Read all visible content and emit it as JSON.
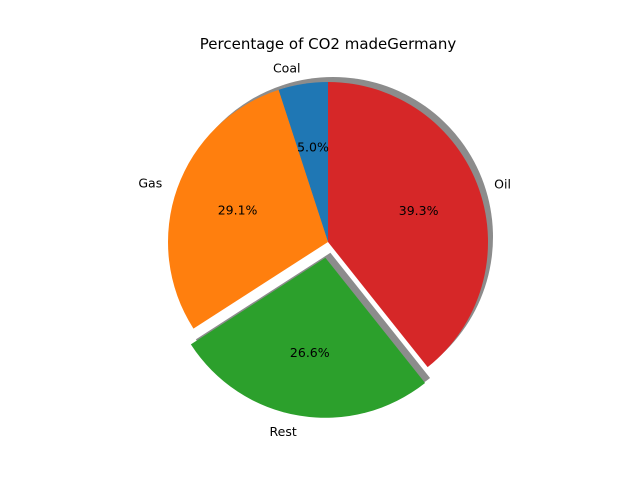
{
  "chart_data": {
    "type": "pie",
    "title": "Percentage of CO2 madeGermany",
    "start_angle_deg": 90,
    "direction": "counterclockwise",
    "shadow": true,
    "slices": [
      {
        "label": "Coal",
        "value": 5.0,
        "pct_label": "5.0%",
        "color": "#1f77b4",
        "explode": 0
      },
      {
        "label": "Gas",
        "value": 29.1,
        "pct_label": "29.1%",
        "color": "#ff7f0e",
        "explode": 0
      },
      {
        "label": "Rest",
        "value": 26.6,
        "pct_label": "26.6%",
        "color": "#2ca02c",
        "explode": 0.1
      },
      {
        "label": "Oil",
        "value": 39.3,
        "pct_label": "39.3%",
        "color": "#d62728",
        "explode": 0
      }
    ]
  }
}
